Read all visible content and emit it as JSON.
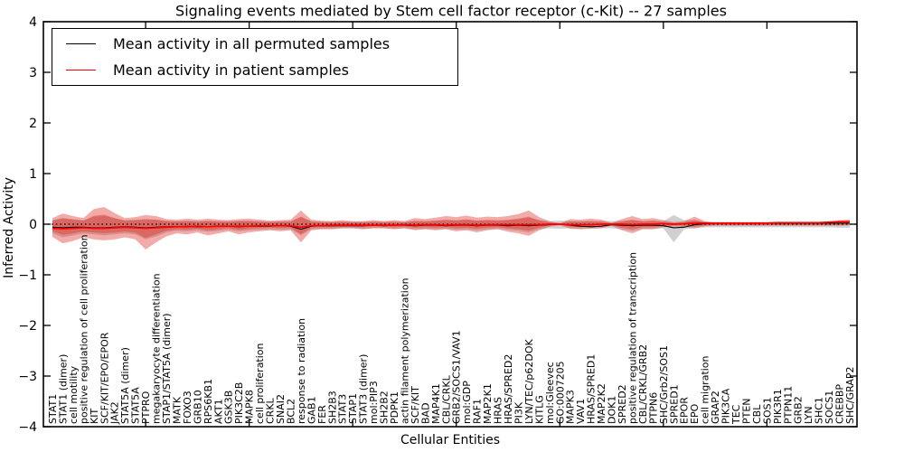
{
  "chart_data": {
    "type": "line",
    "title": "Signaling events mediated by Stem cell factor receptor (c-Kit) -- 27 samples",
    "xlabel": "Cellular Entities",
    "ylabel": "Inferred Activity",
    "ylim": [
      -4,
      4
    ],
    "ytick_labels": [
      "4",
      "3",
      "2",
      "1",
      "0",
      "−1",
      "−2",
      "−3",
      "−4"
    ],
    "ytick_values": [
      4,
      3,
      2,
      1,
      0,
      -1,
      -2,
      -3,
      -4
    ],
    "x_major_tick_indices": [
      9,
      19,
      29,
      39,
      49,
      59,
      69
    ],
    "grid": false,
    "legend": {
      "position": "upper left",
      "entries": [
        {
          "label": "Mean activity in all permuted samples",
          "color": "#000000"
        },
        {
          "label": "Mean activity in patient samples",
          "color": "#ff0000"
        }
      ]
    },
    "colors": {
      "permuted_line": "#000000",
      "patient_line": "#ff0000",
      "patient_fill": "rgba(222,45,38,0.40)",
      "permuted_fill": "rgba(120,120,120,0.35)",
      "zero_line": "#000000"
    },
    "zero_line": {
      "y": 0,
      "style": "dotted"
    },
    "entities": [
      "STAT1",
      "STAT1 (dimer)",
      "cell motility",
      "positive regulation of cell proliferation",
      "KIT",
      "SCF/KIT/EPO/EPOR",
      "JAK2",
      "STAT5A (dimer)",
      "STAT5A",
      "PTPRO",
      "megakaryocyte differentiation",
      "STAP1/STAT5A (dimer)",
      "MATK",
      "FOXO3",
      "GRB10",
      "RPS6KB1",
      "AKT1",
      "GSK3B",
      "PIK3C2B",
      "MAPK8",
      "cell proliferation",
      "CRKL",
      "SNAI2",
      "BCL2",
      "response to radiation",
      "GAB1",
      "FER",
      "SH2B3",
      "STAT3",
      "STAP1",
      "STAT3 (dimer)",
      "mol:PIP3",
      "SH2B2",
      "PDPK1",
      "actin filament polymerization",
      "SCF/KIT",
      "BAD",
      "MAP4K1",
      "CBL/CRKL",
      "GRB2/SOCS1/VAV1",
      "mol:GDP",
      "RAF1",
      "MAP2K1",
      "HRAS",
      "HRAS/SPRED2",
      "PI3K",
      "LYN/TEC/p62DOK",
      "KITLG",
      "mol:Gleevec",
      "GO:0007205",
      "MAPK3",
      "VAV1",
      "HRAS/SPRED1",
      "MAP2K2",
      "DOK1",
      "SPRED2",
      "positive regulation of transcription",
      "CBL/CRKL/GRB2",
      "PTPN6",
      "SHC/Grb2/SOS1",
      "SPRED1",
      "EPOR",
      "EPO",
      "cell migration",
      "GRAP2",
      "PIK3CA",
      "TEC",
      "PTEN",
      "CBL",
      "SOS1",
      "PIK3R1",
      "PTPN11",
      "GRB2",
      "LYN",
      "SHC1",
      "SOCS1",
      "CREBBP",
      "SHC/GRAP2"
    ],
    "series": [
      {
        "name": "Mean activity in all permuted samples",
        "color": "#000000",
        "values": [
          -0.06,
          -0.07,
          -0.06,
          -0.06,
          -0.07,
          -0.07,
          -0.06,
          -0.05,
          -0.06,
          -0.07,
          -0.06,
          -0.05,
          -0.05,
          -0.04,
          -0.05,
          -0.05,
          -0.04,
          -0.04,
          -0.05,
          -0.04,
          -0.04,
          -0.04,
          -0.03,
          -0.04,
          -0.1,
          -0.04,
          -0.03,
          -0.03,
          -0.03,
          -0.03,
          -0.03,
          -0.02,
          -0.03,
          -0.02,
          -0.02,
          -0.03,
          -0.02,
          -0.02,
          -0.03,
          -0.02,
          -0.02,
          -0.03,
          -0.02,
          -0.02,
          -0.03,
          -0.02,
          -0.03,
          -0.02,
          -0.01,
          0.0,
          -0.02,
          -0.04,
          -0.05,
          -0.04,
          -0.01,
          -0.02,
          -0.03,
          -0.02,
          -0.02,
          -0.03,
          -0.07,
          -0.06,
          -0.01,
          0.01,
          0.02,
          0.02,
          0.02,
          0.02,
          0.02,
          0.02,
          0.02,
          0.02,
          0.02,
          0.02,
          0.02,
          0.02,
          0.02,
          0.02
        ]
      },
      {
        "name": "Mean activity in patient samples",
        "color": "#ff0000",
        "values": [
          -0.08,
          -0.09,
          -0.08,
          -0.07,
          -0.08,
          -0.08,
          -0.07,
          -0.06,
          -0.07,
          -0.08,
          -0.07,
          -0.06,
          -0.05,
          -0.05,
          -0.04,
          -0.05,
          -0.04,
          -0.04,
          -0.04,
          -0.04,
          -0.03,
          -0.03,
          -0.03,
          -0.03,
          -0.06,
          -0.03,
          -0.03,
          -0.02,
          -0.02,
          -0.02,
          -0.02,
          -0.02,
          -0.02,
          -0.02,
          -0.01,
          -0.02,
          -0.01,
          -0.01,
          -0.02,
          -0.01,
          -0.01,
          -0.02,
          -0.01,
          -0.01,
          -0.01,
          -0.01,
          -0.01,
          -0.01,
          0.0,
          0.0,
          -0.01,
          -0.01,
          -0.01,
          0.0,
          0.0,
          0.0,
          -0.01,
          0.0,
          0.0,
          0.01,
          0.0,
          0.01,
          0.02,
          0.02,
          0.02,
          0.02,
          0.02,
          0.02,
          0.02,
          0.02,
          0.03,
          0.03,
          0.03,
          0.03,
          0.03,
          0.04,
          0.05,
          0.05
        ]
      }
    ],
    "bands": [
      {
        "name": "permuted-range",
        "fill": "rgba(120,120,120,0.35)",
        "upper": [
          0.08,
          0.12,
          0.1,
          0.08,
          0.15,
          0.16,
          0.12,
          0.08,
          0.09,
          0.1,
          0.09,
          0.07,
          0.06,
          0.07,
          0.06,
          0.07,
          0.06,
          0.06,
          0.07,
          0.07,
          0.06,
          0.05,
          0.06,
          0.06,
          0.14,
          0.06,
          0.05,
          0.05,
          0.05,
          0.05,
          0.05,
          0.05,
          0.05,
          0.05,
          0.05,
          0.06,
          0.06,
          0.07,
          0.08,
          0.07,
          0.09,
          0.07,
          0.08,
          0.07,
          0.08,
          0.1,
          0.13,
          0.08,
          0.06,
          0.07,
          0.06,
          0.06,
          0.06,
          0.06,
          0.06,
          0.06,
          0.08,
          0.06,
          0.07,
          0.06,
          0.18,
          0.08,
          0.08,
          0.05,
          0.05,
          0.05,
          0.05,
          0.05,
          0.05,
          0.05,
          0.05,
          0.05,
          0.05,
          0.05,
          0.05,
          0.05,
          0.06,
          0.06
        ],
        "lower": [
          -0.18,
          -0.26,
          -0.22,
          -0.18,
          -0.2,
          -0.22,
          -0.2,
          -0.18,
          -0.2,
          -0.3,
          -0.24,
          -0.16,
          -0.13,
          -0.14,
          -0.12,
          -0.15,
          -0.13,
          -0.11,
          -0.14,
          -0.12,
          -0.11,
          -0.1,
          -0.11,
          -0.1,
          -0.22,
          -0.1,
          -0.09,
          -0.09,
          -0.08,
          -0.08,
          -0.09,
          -0.08,
          -0.08,
          -0.09,
          -0.08,
          -0.1,
          -0.09,
          -0.1,
          -0.09,
          -0.11,
          -0.1,
          -0.12,
          -0.1,
          -0.09,
          -0.11,
          -0.13,
          -0.16,
          -0.1,
          -0.08,
          -0.09,
          -0.08,
          -0.09,
          -0.08,
          -0.08,
          -0.08,
          -0.1,
          -0.13,
          -0.09,
          -0.09,
          -0.08,
          -0.36,
          -0.1,
          -0.08,
          -0.06,
          -0.06,
          -0.06,
          -0.06,
          -0.06,
          -0.06,
          -0.06,
          -0.06,
          -0.06,
          -0.06,
          -0.06,
          -0.06,
          -0.06,
          -0.07,
          -0.07
        ]
      },
      {
        "name": "patient-range",
        "fill": "rgba(222,45,38,0.40)",
        "inner_scale": 0.55,
        "upper": [
          0.12,
          0.21,
          0.16,
          0.12,
          0.3,
          0.34,
          0.22,
          0.12,
          0.14,
          0.18,
          0.16,
          0.1,
          0.09,
          0.11,
          0.09,
          0.11,
          0.09,
          0.08,
          0.1,
          0.11,
          0.09,
          0.07,
          0.08,
          0.09,
          0.27,
          0.09,
          0.07,
          0.06,
          0.08,
          0.06,
          0.06,
          0.08,
          0.06,
          0.08,
          0.06,
          0.12,
          0.1,
          0.13,
          0.16,
          0.14,
          0.17,
          0.13,
          0.15,
          0.14,
          0.16,
          0.2,
          0.27,
          0.14,
          0.06,
          0.02,
          0.1,
          0.09,
          0.11,
          0.09,
          0.03,
          0.1,
          0.16,
          0.1,
          0.12,
          0.08,
          0.04,
          0.06,
          0.15,
          0.06,
          0.03,
          0.03,
          0.03,
          0.03,
          0.03,
          0.03,
          0.03,
          0.03,
          0.03,
          0.03,
          0.04,
          0.05,
          0.08,
          0.09
        ],
        "lower": [
          -0.25,
          -0.38,
          -0.33,
          -0.26,
          -0.3,
          -0.32,
          -0.3,
          -0.26,
          -0.3,
          -0.5,
          -0.36,
          -0.24,
          -0.18,
          -0.2,
          -0.16,
          -0.22,
          -0.18,
          -0.14,
          -0.2,
          -0.16,
          -0.14,
          -0.12,
          -0.14,
          -0.12,
          -0.36,
          -0.12,
          -0.1,
          -0.1,
          -0.08,
          -0.08,
          -0.1,
          -0.08,
          -0.08,
          -0.1,
          -0.08,
          -0.12,
          -0.1,
          -0.12,
          -0.1,
          -0.14,
          -0.12,
          -0.16,
          -0.12,
          -0.1,
          -0.15,
          -0.18,
          -0.23,
          -0.12,
          -0.05,
          -0.02,
          -0.09,
          -0.1,
          -0.09,
          -0.08,
          -0.03,
          -0.12,
          -0.18,
          -0.1,
          -0.1,
          -0.06,
          -0.04,
          -0.05,
          -0.08,
          -0.04,
          -0.03,
          -0.03,
          -0.03,
          -0.03,
          -0.03,
          -0.03,
          -0.03,
          -0.03,
          -0.03,
          -0.03,
          -0.03,
          -0.03,
          -0.03,
          -0.02
        ]
      }
    ]
  }
}
